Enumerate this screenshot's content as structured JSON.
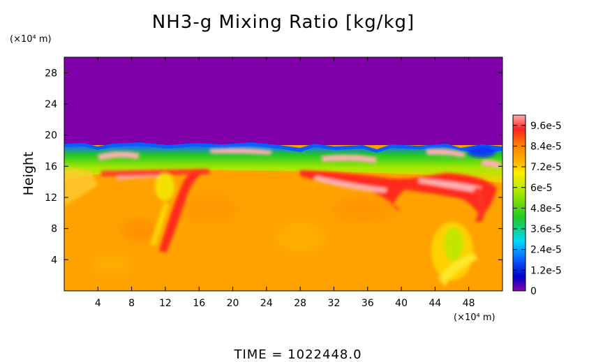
{
  "chart_data": {
    "type": "heatmap",
    "title": "NH3-g Mixing Ratio [kg/kg]",
    "ylabel": "Height",
    "y_unit": "(×10⁴ m)",
    "x_unit": "(×10⁴ m)",
    "xlim": [
      0,
      52
    ],
    "ylim": [
      0,
      30
    ],
    "x_ticks": [
      "4",
      "8",
      "12",
      "16",
      "20",
      "24",
      "28",
      "32",
      "36",
      "40",
      "44",
      "48"
    ],
    "y_ticks": [
      "4",
      "8",
      "12",
      "16",
      "20",
      "24",
      "28"
    ],
    "colorbar": {
      "vmin": 0,
      "vmax": 0.000102,
      "labels": [
        "0",
        "1.2e-5",
        "2.4e-5",
        "3.6e-5",
        "4.8e-5",
        "6e-5",
        "7.2e-5",
        "8.4e-5",
        "9.6e-5"
      ],
      "colors": [
        "#8800aa",
        "#0000c8",
        "#0a60ff",
        "#00d8ff",
        "#22c822",
        "#a8e800",
        "#ffee00",
        "#ffaa00",
        "#ff8800",
        "#ff2222",
        "#ffaaaa"
      ]
    },
    "time_label": "TIME  =  1022448.0"
  }
}
